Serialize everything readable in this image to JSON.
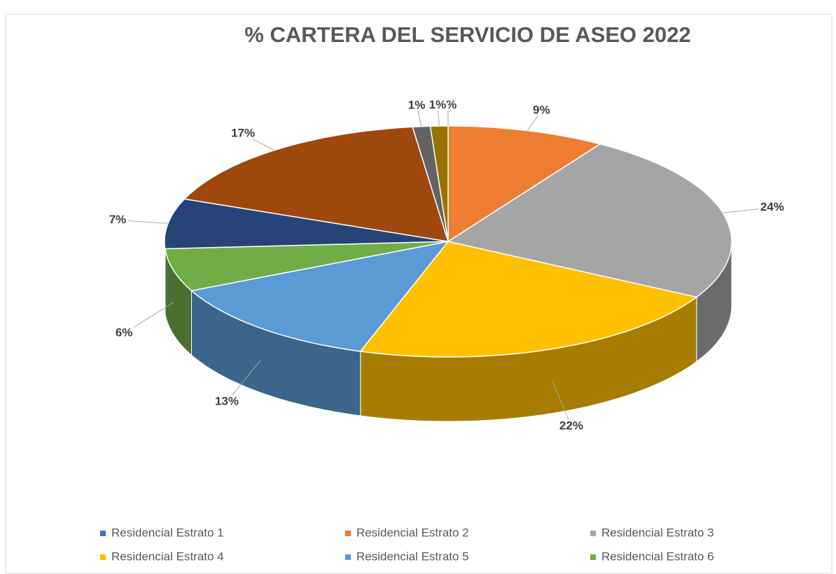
{
  "chart_data": {
    "type": "pie",
    "title": "% CARTERA DEL SERVICIO DE ASEO 2022",
    "categories": [
      "Residencial Estrato 1",
      "Residencial Estrato 2",
      "Residencial Estrato 3",
      "Residencial Estrato 4",
      "Residencial Estrato 5",
      "Residencial Estrato 6",
      null,
      null,
      null,
      null
    ],
    "values": [
      0,
      9,
      24,
      22,
      13,
      6,
      7,
      17,
      1,
      1
    ],
    "value_labels": [
      "0%",
      "9%",
      "24%",
      "22%",
      "13%",
      "6%",
      "7%",
      "17%",
      "1%",
      "1%"
    ],
    "colors": [
      "#4472c4",
      "#ed7d31",
      "#a5a5a5",
      "#ffc000",
      "#5b9bd5",
      "#70ad47",
      "#264478",
      "#9e480e",
      "#636363",
      "#997300"
    ],
    "legend": "bottom"
  }
}
